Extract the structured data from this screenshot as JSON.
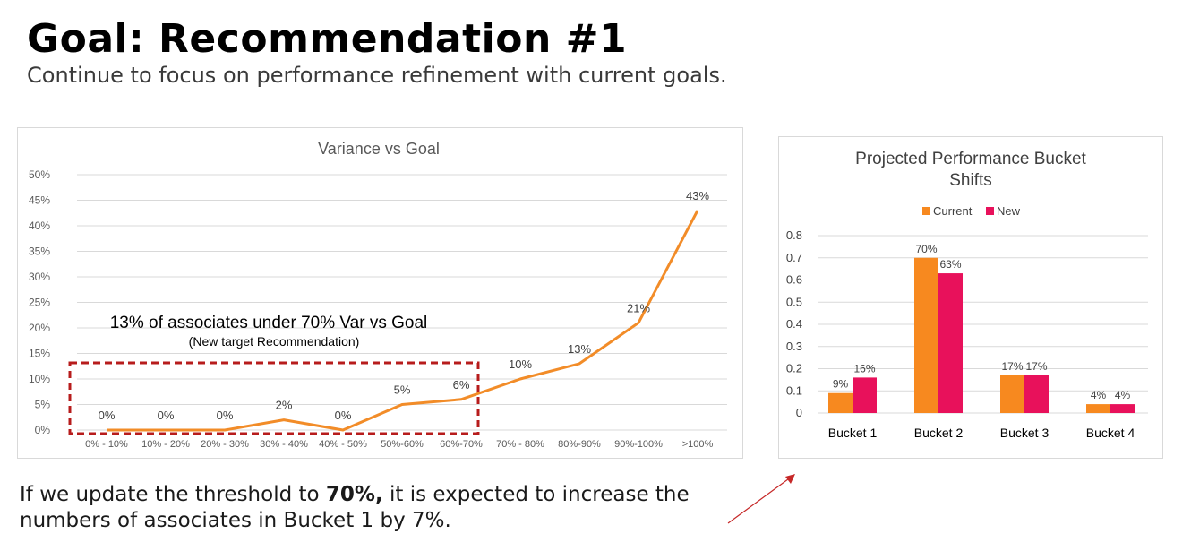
{
  "header": {
    "title": "Goal: Recommendation #1",
    "subtitle": "Continue to focus on performance refinement with current goals."
  },
  "footer": {
    "part1": "If we update the threshold to ",
    "bold": "70%,",
    "part2": " it is expected to increase the",
    "line2": "numbers of associates in Bucket 1 by 7%."
  },
  "annotation": {
    "line1": "13% of associates under 70% Var vs Goal",
    "line2": "(New target Recommendation)"
  },
  "colors": {
    "line": "#f28c28",
    "current": "#f7891f",
    "new": "#e8115b",
    "highlight_box": "#b71c1c",
    "arrow": "#c62828"
  },
  "chart_data": [
    {
      "type": "line",
      "title": "Variance vs Goal",
      "categories": [
        "0% - 10%",
        "10% - 20%",
        "20% - 30%",
        "30% - 40%",
        "40% - 50%",
        "50%-60%",
        "60%-70%",
        "70% - 80%",
        "80%-90%",
        "90%-100%",
        ">100%"
      ],
      "values": [
        0,
        0,
        0,
        2,
        0,
        5,
        6,
        10,
        13,
        21,
        43
      ],
      "data_labels": [
        "0%",
        "0%",
        "0%",
        "2%",
        "0%",
        "5%",
        "6%",
        "10%",
        "13%",
        "21%",
        "43%"
      ],
      "ylim": [
        0,
        50
      ],
      "yticks": [
        "0%",
        "5%",
        "10%",
        "15%",
        "20%",
        "25%",
        "30%",
        "35%",
        "40%",
        "45%",
        "50%"
      ],
      "grid": true
    },
    {
      "type": "bar",
      "title": "Projected Performance Bucket Shifts",
      "title_lines": [
        "Projected Performance Bucket",
        "Shifts"
      ],
      "categories": [
        "Bucket 1",
        "Bucket 2",
        "Bucket 3",
        "Bucket 4"
      ],
      "series": [
        {
          "name": "Current",
          "values": [
            0.09,
            0.7,
            0.17,
            0.04
          ],
          "labels": [
            "9%",
            "70%",
            "17%",
            "4%"
          ]
        },
        {
          "name": "New",
          "values": [
            0.16,
            0.63,
            0.17,
            0.04
          ],
          "labels": [
            "16%",
            "63%",
            "17%",
            "4%"
          ]
        }
      ],
      "ylim": [
        0,
        0.8
      ],
      "yticks": [
        "0",
        "0.1",
        "0.2",
        "0.3",
        "0.4",
        "0.5",
        "0.6",
        "0.7",
        "0.8"
      ],
      "legend": "top",
      "grid": true
    }
  ]
}
